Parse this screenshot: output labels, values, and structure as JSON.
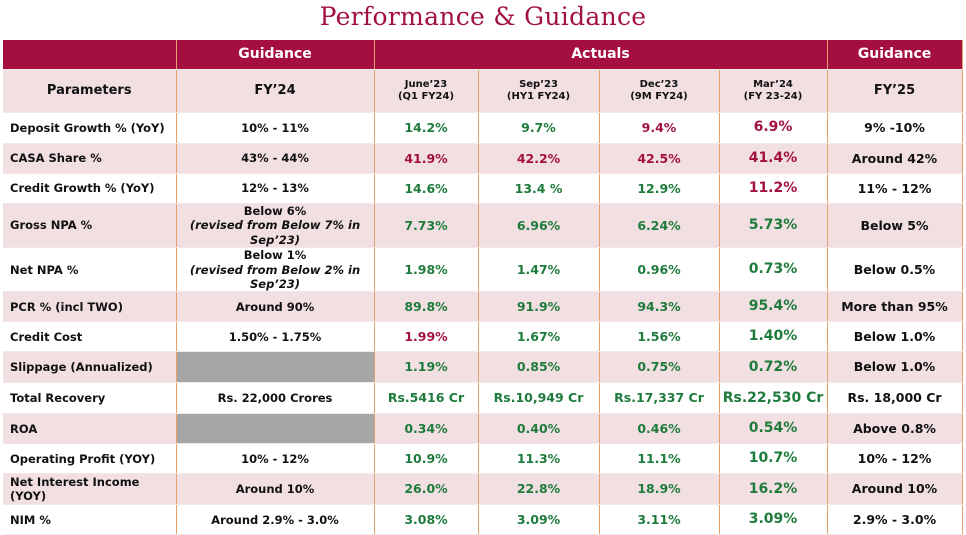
{
  "header": {
    "title": "Performance & Guidance"
  },
  "table": {
    "groups": [
      "Guidance",
      "Actuals",
      "Guidance"
    ],
    "columns": [
      "Parameters",
      "FY’24",
      [
        "June’23",
        "(Q1 FY24)"
      ],
      [
        "Sep’23",
        "(HY1 FY24)"
      ],
      [
        "Dec’23",
        "(9M FY24)"
      ],
      [
        "Mar’24",
        "(FY 23-24)"
      ],
      "FY’25"
    ],
    "colors": {
      "green": "#1e7b3c",
      "red": "#a3123f",
      "blank": "#a6a6a6"
    },
    "rows": [
      {
        "parameter": "Deposit Growth % (YoY)",
        "fy24": [
          "10% - 11%"
        ],
        "actuals": [
          "14.2%",
          "9.7%",
          "9.4%",
          "6.9%"
        ],
        "tones": [
          "green",
          "green",
          "red",
          "red"
        ],
        "fy25": "9% -10%"
      },
      {
        "parameter": "CASA Share %",
        "fy24": [
          "43% - 44%"
        ],
        "actuals": [
          "41.9%",
          "42.2%",
          "42.5%",
          "41.4%"
        ],
        "tones": [
          "red",
          "red",
          "red",
          "red"
        ],
        "fy25": "Around 42%"
      },
      {
        "parameter": "Credit Growth % (YoY)",
        "fy24": [
          "12% - 13%"
        ],
        "actuals": [
          "14.6%",
          "13.4 %",
          "12.9%",
          "11.2%"
        ],
        "tones": [
          "green",
          "green",
          "green",
          "red"
        ],
        "fy25": "11% - 12%"
      },
      {
        "parameter": "Gross NPA %",
        "fy24": [
          "Below 6%",
          "(revised from Below 7% in Sep’23)"
        ],
        "actuals": [
          "7.73%",
          "6.96%",
          "6.24%",
          "5.73%"
        ],
        "tones": [
          "green",
          "green",
          "green",
          "green"
        ],
        "fy25": "Below 5%"
      },
      {
        "parameter": "Net NPA %",
        "fy24": [
          "Below 1%",
          "(revised from Below 2% in Sep’23)"
        ],
        "actuals": [
          "1.98%",
          "1.47%",
          "0.96%",
          "0.73%"
        ],
        "tones": [
          "green",
          "green",
          "green",
          "green"
        ],
        "fy25": "Below 0.5%"
      },
      {
        "parameter": "PCR % (incl TWO)",
        "fy24": [
          "Around 90%"
        ],
        "actuals": [
          "89.8%",
          "91.9%",
          "94.3%",
          "95.4%"
        ],
        "tones": [
          "green",
          "green",
          "green",
          "green"
        ],
        "fy25": "More than 95%"
      },
      {
        "parameter": "Credit Cost",
        "fy24": [
          "1.50% - 1.75%"
        ],
        "actuals": [
          "1.99%",
          "1.67%",
          "1.56%",
          "1.40%"
        ],
        "tones": [
          "red",
          "green",
          "green",
          "green"
        ],
        "fy25": "Below 1.0%"
      },
      {
        "parameter": "Slippage (Annualized)",
        "fy24": null,
        "actuals": [
          "1.19%",
          "0.85%",
          "0.75%",
          "0.72%"
        ],
        "tones": [
          "green",
          "green",
          "green",
          "green"
        ],
        "fy25": "Below 1.0%"
      },
      {
        "parameter": "Total Recovery",
        "fy24": [
          "Rs. 22,000 Crores"
        ],
        "actuals": [
          "Rs.5416 Cr",
          "Rs.10,949 Cr",
          "Rs.17,337 Cr",
          "Rs.22,530 Cr"
        ],
        "tones": [
          "green",
          "green",
          "green",
          "green"
        ],
        "fy25": "Rs. 18,000 Cr"
      },
      {
        "parameter": "ROA",
        "fy24": null,
        "actuals": [
          "0.34%",
          "0.40%",
          "0.46%",
          "0.54%"
        ],
        "tones": [
          "green",
          "green",
          "green",
          "green"
        ],
        "fy25": "Above 0.8%"
      },
      {
        "parameter": "Operating Profit (YOY)",
        "fy24": [
          "10% - 12%"
        ],
        "actuals": [
          "10.9%",
          "11.3%",
          "11.1%",
          "10.7%"
        ],
        "tones": [
          "green",
          "green",
          "green",
          "green"
        ],
        "fy25": "10% - 12%"
      },
      {
        "parameter": "Net Interest Income (YOY)",
        "fy24": [
          "Around 10%"
        ],
        "actuals": [
          "26.0%",
          "22.8%",
          "18.9%",
          "16.2%"
        ],
        "tones": [
          "green",
          "green",
          "green",
          "green"
        ],
        "fy25": "Around 10%"
      },
      {
        "parameter": "NIM %",
        "fy24": [
          "Around 2.9% - 3.0%"
        ],
        "actuals": [
          "3.08%",
          "3.09%",
          "3.11%",
          "3.09%"
        ],
        "tones": [
          "green",
          "green",
          "green",
          "green"
        ],
        "fy25": "2.9% - 3.0%"
      }
    ]
  }
}
